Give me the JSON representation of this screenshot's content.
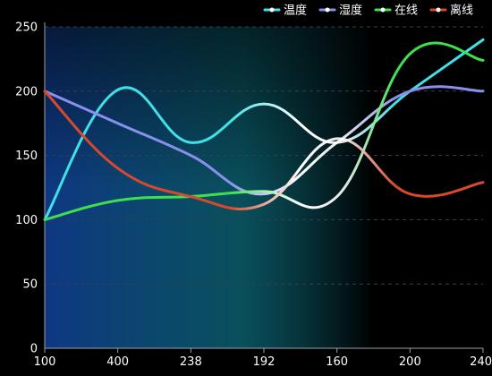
{
  "chart_data": {
    "type": "line",
    "title": "",
    "xlabel": "",
    "ylabel": "",
    "categories": [
      "100",
      "400",
      "238",
      "192",
      "160",
      "200",
      "240"
    ],
    "ylim": [
      0,
      250
    ],
    "yticks": [
      0,
      50,
      100,
      150,
      200,
      250
    ],
    "grid": true,
    "legend_position": "top-right",
    "series": [
      {
        "name": "温度",
        "color": "#3fe0e8",
        "values": [
          100,
          201,
          160,
          190,
          160,
          200,
          240
        ]
      },
      {
        "name": "湿度",
        "color": "#8a8fee",
        "values": [
          200,
          175,
          150,
          120,
          160,
          200,
          200
        ]
      },
      {
        "name": "在线",
        "color": "#3ee04e",
        "values": [
          100,
          115,
          118,
          122,
          118,
          229,
          224
        ]
      },
      {
        "name": "离线",
        "color": "#d8482a",
        "values": [
          200,
          140,
          118,
          112,
          163,
          120,
          129
        ]
      }
    ],
    "colors": {
      "background": "#000000",
      "area_fill_start": "#0f3a8a",
      "area_fill_mid": "#0c6a7a",
      "grid": "#3a3f48",
      "axis": "#9aa0a8",
      "text": "#ffffff"
    }
  }
}
